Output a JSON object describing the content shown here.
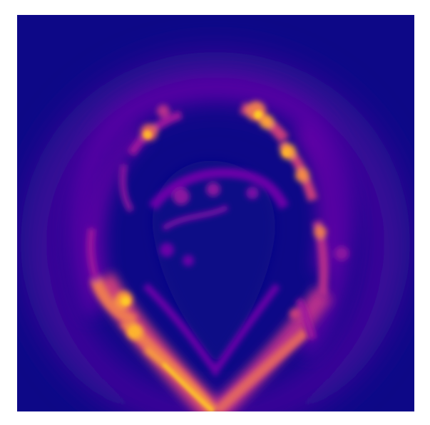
{
  "image": {
    "kind": "false-color intensity map",
    "colormap": "plasma",
    "colors": {
      "background": "#0d0887",
      "low": "#3a0a97",
      "mid_low": "#6a00a8",
      "mid": "#9c179e",
      "mid_high": "#c93d7c",
      "high": "#ed7953",
      "peak": "#fdb42f"
    }
  }
}
